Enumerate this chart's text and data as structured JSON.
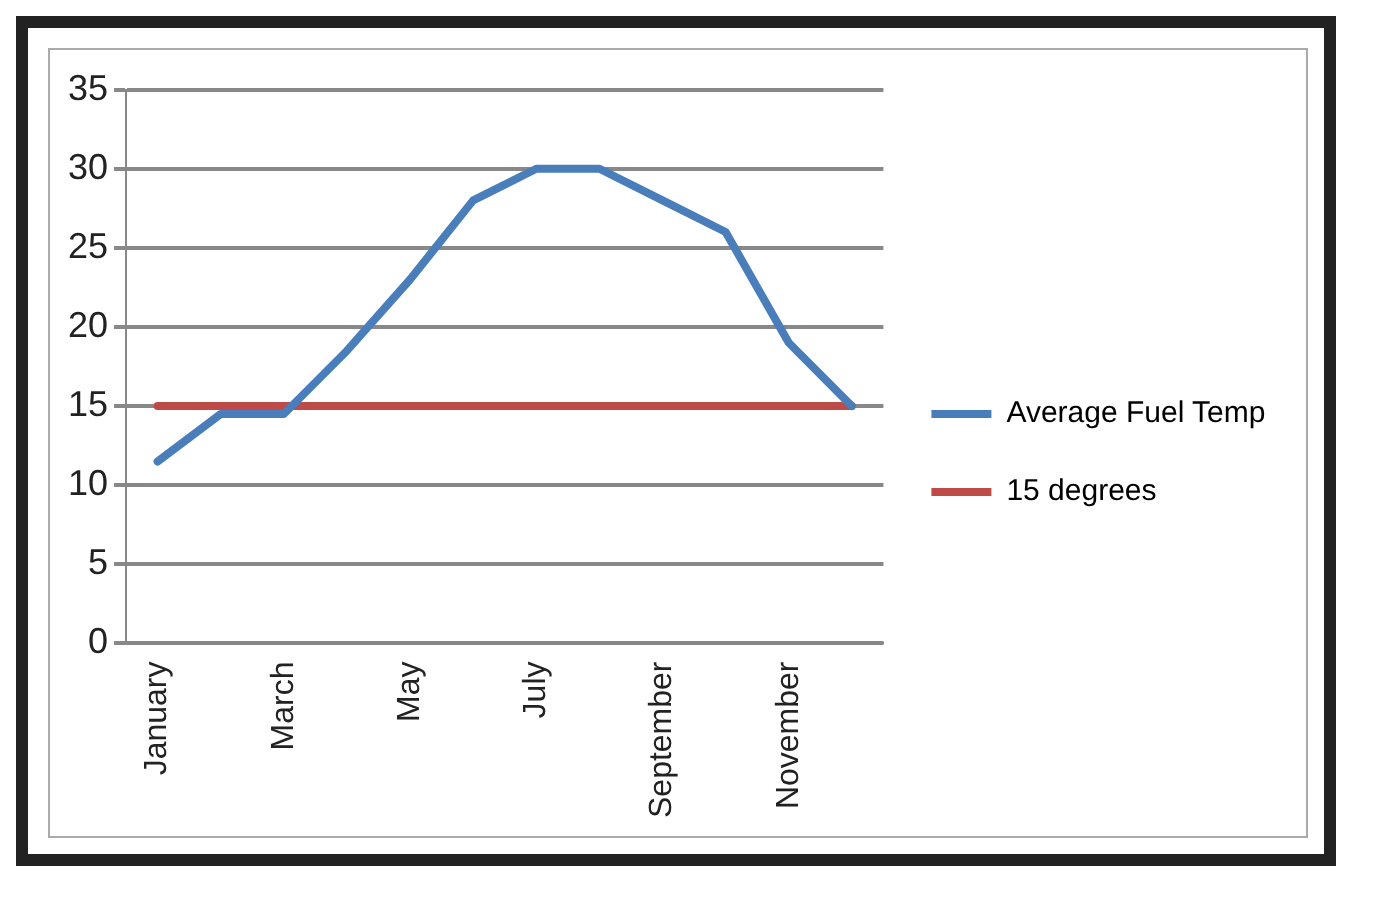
{
  "chart_data": {
    "type": "line",
    "categories": [
      "January",
      null,
      "March",
      null,
      "May",
      null,
      "July",
      null,
      "September",
      null,
      "November",
      null
    ],
    "series": [
      {
        "name": "Average Fuel Temp",
        "color": "#4a7ebb",
        "values": [
          11.5,
          14.5,
          14.5,
          18.5,
          23,
          28,
          30,
          30,
          28,
          26,
          19,
          15
        ]
      },
      {
        "name": "15 degrees",
        "color": "#be4b48",
        "values": [
          15,
          15,
          15,
          15,
          15,
          15,
          15,
          15,
          15,
          15,
          15,
          15
        ]
      }
    ],
    "ylim": [
      0,
      35
    ],
    "yticks": [
      0,
      5,
      10,
      15,
      20,
      25,
      30,
      35
    ],
    "grid": "y",
    "legend": "right",
    "marker": "none",
    "line_style": "solid"
  }
}
